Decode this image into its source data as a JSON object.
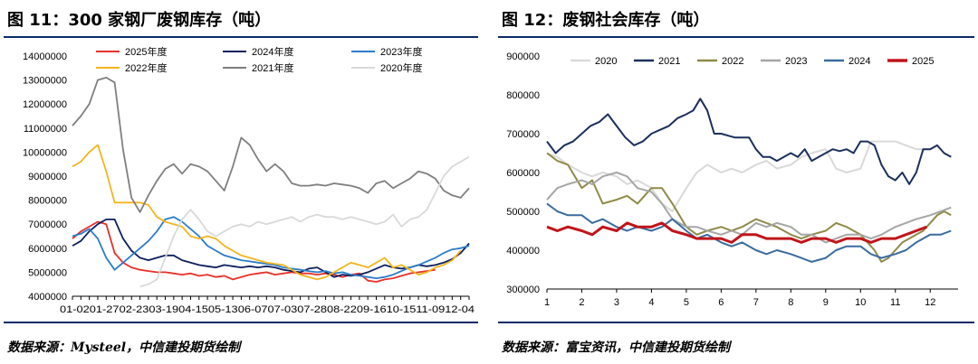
{
  "left": {
    "title": "图 11：300 家钢厂废钢库存（吨）",
    "source": "数据来源：Mysteel，中信建投期货绘制",
    "chart_data": {
      "type": "line",
      "title": "300 家钢厂废钢库存（吨）",
      "ylim": [
        4000000,
        14000000
      ],
      "yticks": [
        "14000000",
        "13000000",
        "12000000",
        "11000000",
        "10000000",
        "9000000",
        "8000000",
        "7000000",
        "6000000",
        "5000000",
        "4000000"
      ],
      "xlabels_text": "01-0201-2702-2303-1904-1505-1306-0707-0307-2808-2209-1610-1511-0912-04",
      "xcount": 48,
      "series": [
        {
          "name": "2025年度",
          "color": "#e8302a",
          "width": 1.8,
          "values": [
            6400000,
            6700000,
            6900000,
            7100000,
            7000000,
            5800000,
            5400000,
            5200000,
            5100000,
            5050000,
            5000000,
            5000000,
            4950000,
            4900000,
            4950000,
            4850000,
            4900000,
            4800000,
            4850000,
            4700000,
            4800000,
            4900000,
            4950000,
            5000000,
            4900000,
            4950000,
            5000000,
            4950000,
            4950000,
            4900000,
            4950000,
            4900000,
            4800000,
            4900000,
            4950000,
            4650000,
            4600000,
            4700000,
            4750000,
            4850000,
            4950000,
            5000000,
            5050000,
            5100000
          ]
        },
        {
          "name": "2024年度",
          "color": "#0d1f5e",
          "width": 1.8,
          "values": [
            6100000,
            6300000,
            6700000,
            7000000,
            7200000,
            7200000,
            6400000,
            5900000,
            5600000,
            5500000,
            5600000,
            5700000,
            5700000,
            5500000,
            5400000,
            5300000,
            5250000,
            5200000,
            5300000,
            5250000,
            5200000,
            5250000,
            5200000,
            5250000,
            5200000,
            5100000,
            5050000,
            5000000,
            5150000,
            5200000,
            5000000,
            4800000,
            4900000,
            4850000,
            4900000,
            5000000,
            5150000,
            5300000,
            5200000,
            5150000,
            5200000,
            5300000,
            5250000,
            5300000,
            5400000,
            5550000,
            5800000,
            6200000
          ]
        },
        {
          "name": "2023年度",
          "color": "#2a7cc7",
          "width": 1.8,
          "values": [
            6500000,
            6600000,
            6800000,
            6400000,
            5600000,
            5100000,
            5400000,
            5700000,
            6000000,
            6300000,
            6700000,
            7200000,
            7300000,
            7100000,
            6800000,
            6500000,
            6100000,
            5900000,
            5700000,
            5600000,
            5500000,
            5450000,
            5400000,
            5350000,
            5300000,
            5200000,
            5150000,
            5100000,
            5050000,
            5000000,
            5050000,
            4950000,
            5000000,
            4900000,
            4850000,
            4800000,
            4750000,
            4800000,
            4900000,
            5050000,
            5200000,
            5300000,
            5450000,
            5600000,
            5800000,
            5950000,
            6000000,
            6100000
          ]
        },
        {
          "name": "2022年度",
          "color": "#f3b51f",
          "width": 1.8,
          "values": [
            9400000,
            9600000,
            10000000,
            10300000,
            9200000,
            7900000,
            7900000,
            7900000,
            7900000,
            7800000,
            7300000,
            7100000,
            7000000,
            6900000,
            6500000,
            6400000,
            6500000,
            6400000,
            6100000,
            5900000,
            5700000,
            5600000,
            5500000,
            5400000,
            5350000,
            5300000,
            5100000,
            4900000,
            4800000,
            4700000,
            4800000,
            5000000,
            5200000,
            5400000,
            5300000,
            5200000,
            5400000,
            5600000,
            5200000,
            5300000,
            5100000,
            4900000,
            5000000,
            5200000,
            5300000,
            5500000,
            5900000
          ]
        },
        {
          "name": "2021年度",
          "color": "#7f7f7f",
          "width": 1.8,
          "values": [
            11100000,
            11500000,
            12000000,
            13000000,
            13100000,
            12900000,
            10100000,
            8100000,
            7500000,
            8200000,
            8800000,
            9300000,
            9500000,
            9100000,
            9500000,
            9400000,
            9200000,
            8800000,
            8400000,
            9400000,
            10600000,
            10300000,
            9700000,
            9200000,
            9500000,
            9200000,
            8700000,
            8600000,
            8600000,
            8650000,
            8600000,
            8700000,
            8650000,
            8600000,
            8500000,
            8300000,
            8700000,
            8800000,
            8500000,
            8700000,
            8900000,
            9200000,
            9100000,
            8900000,
            8400000,
            8200000,
            8100000,
            8500000
          ]
        },
        {
          "name": "2020年度",
          "color": "#d9d9d9",
          "width": 1.8,
          "values": [
            null,
            null,
            null,
            null,
            null,
            null,
            null,
            null,
            4400000,
            4500000,
            4700000,
            5600000,
            6500000,
            7200000,
            7600000,
            7200000,
            6700000,
            6500000,
            6700000,
            6900000,
            7000000,
            6900000,
            7100000,
            7000000,
            7100000,
            7200000,
            7300000,
            7100000,
            7300000,
            7400000,
            7300000,
            7300000,
            7200000,
            7300000,
            7200000,
            7100000,
            7000000,
            7100000,
            7400000,
            6900000,
            7200000,
            7300000,
            7600000,
            8300000,
            9000000,
            9400000,
            9600000,
            9800000
          ]
        }
      ],
      "legend_position": "top"
    }
  },
  "right": {
    "title": "图 12：废钢社会库存（吨）",
    "source": "数据来源：富宝资讯，中信建投期货绘制",
    "chart_data": {
      "type": "line",
      "title": "废钢社会库存（吨）",
      "ylim": [
        300000,
        900000
      ],
      "yticks": [
        "900000",
        "800000",
        "700000",
        "600000",
        "500000",
        "400000",
        "300000"
      ],
      "xticks": [
        "1",
        "2",
        "3",
        "4",
        "5",
        "6",
        "7",
        "8",
        "9",
        "10",
        "11",
        "12"
      ],
      "xrange": [
        1,
        12.8
      ],
      "series": [
        {
          "name": "2020",
          "color": "#d9d9d9",
          "width": 2,
          "x": [
            1,
            1.3,
            1.6,
            2,
            2.3,
            2.6,
            3,
            3.3,
            3.6,
            4,
            4.3,
            4.6,
            5,
            5.3,
            5.6,
            6,
            6.3,
            6.6,
            7,
            7.3,
            7.6,
            8,
            8.3,
            8.6,
            9,
            9.3,
            9.6,
            10,
            10.3,
            10.6,
            11,
            11.3,
            11.6,
            12
          ],
          "values": [
            650000,
            640000,
            620000,
            600000,
            590000,
            600000,
            590000,
            570000,
            580000,
            560000,
            520000,
            500000,
            560000,
            600000,
            620000,
            600000,
            610000,
            600000,
            620000,
            630000,
            610000,
            620000,
            640000,
            650000,
            660000,
            610000,
            600000,
            610000,
            680000,
            680000,
            680000,
            670000,
            660000,
            660000
          ]
        },
        {
          "name": "2021",
          "color": "#1b2f5b",
          "width": 2,
          "x": [
            1,
            1.25,
            1.5,
            1.75,
            2,
            2.25,
            2.5,
            2.75,
            3,
            3.25,
            3.5,
            3.75,
            4,
            4.25,
            4.5,
            4.75,
            5,
            5.2,
            5.4,
            5.6,
            5.8,
            6,
            6.2,
            6.4,
            6.6,
            6.8,
            7,
            7.2,
            7.4,
            7.6,
            7.8,
            8,
            8.2,
            8.4,
            8.6,
            8.8,
            9,
            9.2,
            9.4,
            9.6,
            9.8,
            10,
            10.2,
            10.4,
            10.6,
            10.8,
            11,
            11.2,
            11.4,
            11.6,
            11.8,
            12,
            12.2,
            12.4,
            12.6
          ],
          "values": [
            680000,
            650000,
            670000,
            680000,
            700000,
            720000,
            730000,
            750000,
            720000,
            690000,
            670000,
            680000,
            700000,
            710000,
            720000,
            740000,
            750000,
            760000,
            790000,
            760000,
            700000,
            700000,
            695000,
            690000,
            690000,
            690000,
            660000,
            640000,
            640000,
            630000,
            640000,
            650000,
            640000,
            660000,
            630000,
            640000,
            650000,
            660000,
            655000,
            660000,
            650000,
            680000,
            680000,
            670000,
            620000,
            590000,
            580000,
            600000,
            570000,
            600000,
            660000,
            660000,
            670000,
            650000,
            640000
          ]
        },
        {
          "name": "2022",
          "color": "#8f8a49",
          "width": 2,
          "x": [
            1,
            1.3,
            1.6,
            2,
            2.3,
            2.6,
            3,
            3.3,
            3.6,
            4,
            4.3,
            4.6,
            5,
            5.3,
            5.6,
            6,
            6.3,
            6.6,
            7,
            7.3,
            7.6,
            8,
            8.3,
            8.6,
            9,
            9.3,
            9.6,
            10,
            10.2,
            10.4,
            10.6,
            10.8,
            11,
            11.2,
            11.4,
            11.6,
            11.8,
            12,
            12.2,
            12.4,
            12.6
          ],
          "values": [
            650000,
            630000,
            620000,
            560000,
            580000,
            520000,
            530000,
            540000,
            520000,
            560000,
            560000,
            520000,
            460000,
            440000,
            450000,
            460000,
            450000,
            460000,
            480000,
            470000,
            460000,
            440000,
            430000,
            440000,
            450000,
            470000,
            460000,
            440000,
            420000,
            400000,
            370000,
            380000,
            400000,
            420000,
            430000,
            440000,
            450000,
            470000,
            490000,
            500000,
            490000
          ]
        },
        {
          "name": "2023",
          "color": "#a6a6a6",
          "width": 2,
          "x": [
            1,
            1.3,
            1.6,
            2,
            2.3,
            2.6,
            3,
            3.3,
            3.6,
            4,
            4.3,
            4.6,
            5,
            5.3,
            5.6,
            6,
            6.3,
            6.6,
            7,
            7.3,
            7.6,
            8,
            8.3,
            8.6,
            9,
            9.3,
            9.6,
            10,
            10.3,
            10.6,
            11,
            11.3,
            11.6,
            12,
            12.3,
            12.6
          ],
          "values": [
            530000,
            560000,
            570000,
            580000,
            570000,
            590000,
            600000,
            590000,
            560000,
            550000,
            520000,
            480000,
            460000,
            460000,
            450000,
            440000,
            450000,
            440000,
            470000,
            460000,
            470000,
            460000,
            440000,
            440000,
            420000,
            430000,
            440000,
            440000,
            430000,
            440000,
            460000,
            470000,
            480000,
            490000,
            500000,
            510000
          ]
        },
        {
          "name": "2024",
          "color": "#3a6c9f",
          "width": 2,
          "x": [
            1,
            1.3,
            1.6,
            2,
            2.3,
            2.6,
            3,
            3.3,
            3.6,
            4,
            4.3,
            4.6,
            5,
            5.3,
            5.6,
            6,
            6.3,
            6.6,
            7,
            7.3,
            7.6,
            8,
            8.3,
            8.6,
            9,
            9.3,
            9.6,
            10,
            10.3,
            10.6,
            11,
            11.3,
            11.6,
            12,
            12.3,
            12.6
          ],
          "values": [
            520000,
            500000,
            490000,
            490000,
            470000,
            480000,
            460000,
            450000,
            460000,
            450000,
            460000,
            480000,
            450000,
            430000,
            440000,
            420000,
            410000,
            420000,
            400000,
            390000,
            400000,
            390000,
            380000,
            370000,
            380000,
            400000,
            410000,
            410000,
            390000,
            380000,
            390000,
            400000,
            420000,
            440000,
            440000,
            450000
          ]
        },
        {
          "name": "2025",
          "color": "#c0151b",
          "width": 3,
          "x": [
            1,
            1.3,
            1.6,
            2,
            2.3,
            2.6,
            3,
            3.3,
            3.6,
            4,
            4.3,
            4.6,
            5,
            5.3,
            5.6,
            6,
            6.3,
            6.6,
            7,
            7.3,
            7.6,
            8,
            8.3,
            8.6,
            9,
            9.3,
            9.6,
            10,
            10.3,
            10.6,
            11,
            11.3,
            11.6,
            11.9
          ],
          "values": [
            460000,
            450000,
            460000,
            450000,
            440000,
            460000,
            450000,
            470000,
            460000,
            460000,
            470000,
            450000,
            440000,
            430000,
            430000,
            430000,
            420000,
            440000,
            440000,
            430000,
            430000,
            430000,
            420000,
            430000,
            430000,
            420000,
            430000,
            430000,
            420000,
            430000,
            430000,
            440000,
            450000,
            460000
          ]
        }
      ],
      "legend_position": "top"
    }
  }
}
